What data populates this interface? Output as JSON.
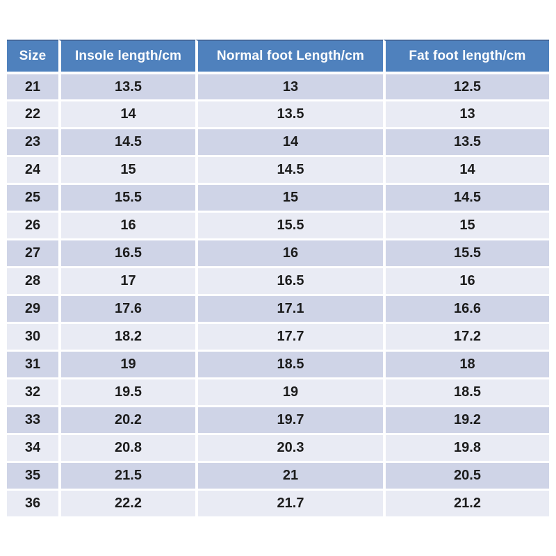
{
  "page": {
    "background_color": "#ffffff"
  },
  "table": {
    "columns": [
      "Size",
      "Insole length/cm",
      "Normal foot Length/cm",
      "Fat foot length/cm"
    ],
    "rows": [
      [
        "21",
        "13.5",
        "13",
        "12.5"
      ],
      [
        "22",
        "14",
        "13.5",
        "13"
      ],
      [
        "23",
        "14.5",
        "14",
        "13.5"
      ],
      [
        "24",
        "15",
        "14.5",
        "14"
      ],
      [
        "25",
        "15.5",
        "15",
        "14.5"
      ],
      [
        "26",
        "16",
        "15.5",
        "15"
      ],
      [
        "27",
        "16.5",
        "16",
        "15.5"
      ],
      [
        "28",
        "17",
        "16.5",
        "16"
      ],
      [
        "29",
        "17.6",
        "17.1",
        "16.6"
      ],
      [
        "30",
        "18.2",
        "17.7",
        "17.2"
      ],
      [
        "31",
        "19",
        "18.5",
        "18"
      ],
      [
        "32",
        "19.5",
        "19",
        "18.5"
      ],
      [
        "33",
        "20.2",
        "19.7",
        "19.2"
      ],
      [
        "34",
        "20.8",
        "20.3",
        "19.8"
      ],
      [
        "35",
        "21.5",
        "21",
        "20.5"
      ],
      [
        "36",
        "22.2",
        "21.7",
        "21.2"
      ]
    ],
    "colors": {
      "header_background": "#4f81bd",
      "header_text": "#ffffff",
      "row_band_dark": "#cfd4e7",
      "row_band_light": "#e9ebf4",
      "separator": "#ffffff",
      "cell_text": "#1c1c1c"
    }
  },
  "chart_data": {
    "type": "table",
    "title": "",
    "columns": [
      "Size",
      "Insole length/cm",
      "Normal foot Length/cm",
      "Fat foot length/cm"
    ],
    "sizes": [
      21,
      22,
      23,
      24,
      25,
      26,
      27,
      28,
      29,
      30,
      31,
      32,
      33,
      34,
      35,
      36
    ],
    "series": [
      {
        "name": "Insole length/cm",
        "values": [
          13.5,
          14,
          14.5,
          15,
          15.5,
          16,
          16.5,
          17,
          17.6,
          18.2,
          19,
          19.5,
          20.2,
          20.8,
          21.5,
          22.2
        ]
      },
      {
        "name": "Normal foot Length/cm",
        "values": [
          13,
          13.5,
          14,
          14.5,
          15,
          15.5,
          16,
          16.5,
          17.1,
          17.7,
          18.5,
          19,
          19.7,
          20.3,
          21,
          21.7
        ]
      },
      {
        "name": "Fat foot length/cm",
        "values": [
          12.5,
          13,
          13.5,
          14,
          14.5,
          15,
          15.5,
          16,
          16.6,
          17.2,
          18,
          18.5,
          19.2,
          19.8,
          20.5,
          21.2
        ]
      }
    ],
    "layout_hints": {
      "header_style": "blue banner, white bold text",
      "banding": "alternating dark/light lavender rows starting dark",
      "alignment": "all cells centered"
    }
  }
}
